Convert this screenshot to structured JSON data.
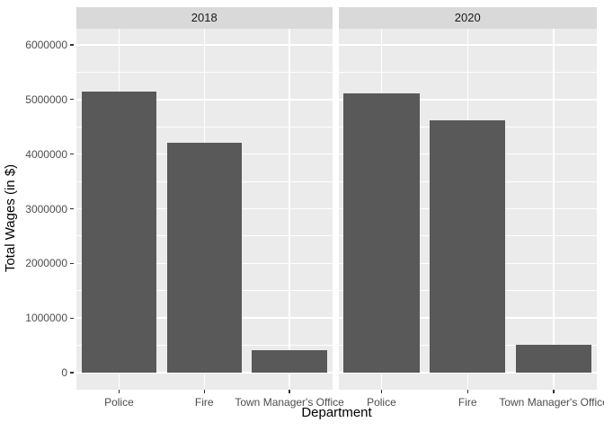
{
  "chart_data": {
    "type": "bar",
    "title": "",
    "xlabel": "Department",
    "ylabel": "Total Wages (in $)",
    "faceting": {
      "strip_labels": [
        "2018",
        "2020"
      ]
    },
    "categories": [
      "Police",
      "Fire",
      "Town Manager's Office"
    ],
    "series": [
      {
        "name": "2018",
        "values": [
          5140000,
          4200000,
          410000
        ]
      },
      {
        "name": "2020",
        "values": [
          5110000,
          4610000,
          520000
        ]
      }
    ],
    "ylim": [
      -300000,
      6300000
    ],
    "y_ticks": [
      0,
      1000000,
      2000000,
      3000000,
      4000000,
      5000000,
      6000000
    ],
    "y_tick_labels": [
      "0",
      "1000000",
      "2000000",
      "3000000",
      "4000000",
      "5000000",
      "6000000"
    ],
    "y_minor_ticks": [
      500000,
      1500000,
      2500000,
      3500000,
      4500000,
      5500000
    ],
    "grid": true,
    "legend": "none",
    "style": {
      "panel_bg": "#EBEBEB",
      "strip_bg": "#D9D9D9",
      "bar_fill": "#595959",
      "grid_color": "#FFFFFF",
      "tick_label_color": "#4D4D4D",
      "axis_title_color": "#000000",
      "strip_text_color": "#1A1A1A",
      "tick_mark_color": "#333333"
    }
  }
}
